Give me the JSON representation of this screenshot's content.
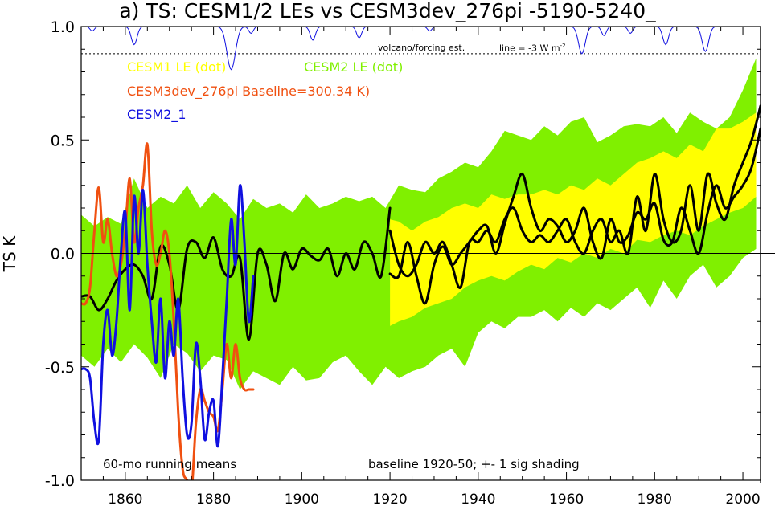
{
  "chart_data": {
    "type": "line",
    "title": "a) TS: CESM1/2 LEs vs CESM3dev_276pi -5190-5240_",
    "ylabel": "TS K",
    "xlabel": "",
    "xlim": [
      1850,
      2004
    ],
    "ylim": [
      -1.0,
      1.0
    ],
    "x_ticks": [
      1860,
      1880,
      1900,
      1920,
      1940,
      1960,
      1980,
      2000
    ],
    "x_tick_labels": [
      "1860",
      "1880",
      "1900",
      "1920",
      "1940",
      "1960",
      "1980",
      "2000"
    ],
    "y_ticks": [
      -1.0,
      -0.5,
      0.0,
      0.5,
      1.0
    ],
    "y_tick_labels": [
      "-1.0",
      "-0.5",
      "0.0",
      "0.5",
      "1.0"
    ],
    "grid": false,
    "legend": [
      {
        "label": "CESM1 LE (dot)",
        "color": "#ffff00"
      },
      {
        "label": "CESM2 LE (dot)",
        "color": "#80f000"
      },
      {
        "label": "CESM3dev_276pi Baseline=300.34 K)",
        "color": "#f05010"
      },
      {
        "label": "CESM2_1",
        "color": "#1010e0"
      }
    ],
    "annotations": {
      "volcano_label": "volcano/forcing est.",
      "forcing_scale": "line = -3 W m",
      "forcing_scale_sup": "-2",
      "running_means": "60-mo running means",
      "baseline_note": "baseline 1920-50; +- 1 sig shading"
    },
    "forcing_reference_y": 0.88,
    "volcano_dips": [
      {
        "year": 1852.5,
        "depth": 0.02
      },
      {
        "year": 1862.0,
        "depth": 0.08
      },
      {
        "year": 1884.0,
        "depth": 0.19
      },
      {
        "year": 1888.5,
        "depth": 0.03
      },
      {
        "year": 1902.5,
        "depth": 0.06
      },
      {
        "year": 1913.0,
        "depth": 0.05
      },
      {
        "year": 1929.0,
        "depth": 0.02
      },
      {
        "year": 1963.5,
        "depth": 0.12
      },
      {
        "year": 1968.5,
        "depth": 0.04
      },
      {
        "year": 1974.5,
        "depth": 0.03
      },
      {
        "year": 1982.5,
        "depth": 0.08
      },
      {
        "year": 1991.5,
        "depth": 0.11
      }
    ],
    "cesm2_envelope": {
      "x": [
        1850,
        1853,
        1856,
        1859,
        1862,
        1865,
        1868,
        1871,
        1874,
        1877,
        1880,
        1883,
        1886,
        1889,
        1892,
        1895,
        1898,
        1901,
        1904,
        1907,
        1910,
        1913,
        1916,
        1919,
        1922,
        1925,
        1928,
        1931,
        1934,
        1937,
        1940,
        1943,
        1946,
        1949,
        1952,
        1955,
        1958,
        1961,
        1964,
        1967,
        1970,
        1973,
        1976,
        1979,
        1982,
        1985,
        1988,
        1991,
        1994,
        1997,
        2000,
        2003
      ],
      "upper": [
        0.17,
        0.12,
        0.16,
        0.13,
        0.33,
        0.2,
        0.25,
        0.22,
        0.3,
        0.2,
        0.27,
        0.22,
        0.15,
        0.24,
        0.2,
        0.22,
        0.18,
        0.26,
        0.2,
        0.22,
        0.25,
        0.23,
        0.25,
        0.2,
        0.3,
        0.28,
        0.27,
        0.33,
        0.36,
        0.4,
        0.38,
        0.45,
        0.54,
        0.52,
        0.5,
        0.56,
        0.52,
        0.58,
        0.6,
        0.49,
        0.52,
        0.56,
        0.57,
        0.56,
        0.6,
        0.53,
        0.62,
        0.58,
        0.55,
        0.6,
        0.72,
        0.86
      ],
      "lower": [
        -0.45,
        -0.5,
        -0.42,
        -0.48,
        -0.4,
        -0.46,
        -0.55,
        -0.4,
        -0.44,
        -0.52,
        -0.45,
        -0.47,
        -0.6,
        -0.52,
        -0.55,
        -0.58,
        -0.5,
        -0.56,
        -0.55,
        -0.48,
        -0.45,
        -0.52,
        -0.58,
        -0.5,
        -0.55,
        -0.52,
        -0.5,
        -0.45,
        -0.42,
        -0.5,
        -0.35,
        -0.3,
        -0.33,
        -0.28,
        -0.28,
        -0.25,
        -0.3,
        -0.24,
        -0.28,
        -0.22,
        -0.25,
        -0.2,
        -0.15,
        -0.24,
        -0.12,
        -0.2,
        -0.1,
        -0.05,
        -0.15,
        -0.1,
        -0.02,
        0.02
      ]
    },
    "cesm1_envelope": {
      "x": [
        1920,
        1922,
        1925,
        1928,
        1931,
        1934,
        1937,
        1940,
        1943,
        1946,
        1949,
        1952,
        1955,
        1958,
        1961,
        1964,
        1967,
        1970,
        1973,
        1976,
        1979,
        1982,
        1985,
        1988,
        1991,
        1994,
        1997,
        2000,
        2003
      ],
      "upper": [
        0.15,
        0.14,
        0.1,
        0.14,
        0.16,
        0.2,
        0.22,
        0.2,
        0.26,
        0.24,
        0.26,
        0.26,
        0.28,
        0.26,
        0.3,
        0.28,
        0.33,
        0.3,
        0.35,
        0.4,
        0.42,
        0.45,
        0.42,
        0.48,
        0.45,
        0.55,
        0.55,
        0.58,
        0.62
      ],
      "lower": [
        -0.32,
        -0.3,
        -0.28,
        -0.24,
        -0.22,
        -0.2,
        -0.15,
        -0.12,
        -0.1,
        -0.12,
        -0.08,
        -0.05,
        -0.07,
        -0.02,
        -0.04,
        0.0,
        -0.02,
        0.02,
        0.0,
        0.06,
        0.05,
        0.08,
        0.1,
        0.08,
        0.12,
        0.15,
        0.18,
        0.2,
        0.25
      ]
    },
    "series": [
      {
        "color": "#000000",
        "x": [
          1850,
          1852,
          1854,
          1856,
          1858,
          1860,
          1862,
          1864,
          1866,
          1868,
          1870,
          1872,
          1874,
          1876,
          1878,
          1880,
          1882,
          1884,
          1886,
          1888,
          1890,
          1892,
          1894,
          1896,
          1898,
          1900,
          1902,
          1904,
          1906,
          1908,
          1910,
          1912,
          1914,
          1916,
          1918,
          1920
        ],
        "values": [
          -0.19,
          -0.19,
          -0.25,
          -0.2,
          -0.12,
          -0.07,
          -0.05,
          -0.1,
          -0.2,
          0.03,
          -0.05,
          -0.25,
          0.02,
          0.05,
          -0.02,
          0.07,
          -0.07,
          -0.1,
          -0.02,
          -0.38,
          0.0,
          -0.05,
          -0.21,
          0.0,
          -0.07,
          0.02,
          -0.01,
          -0.03,
          0.02,
          -0.1,
          0.0,
          -0.07,
          0.05,
          0.0,
          -0.1,
          0.2
        ]
      },
      {
        "color": "#000000",
        "x": [
          1920,
          1922,
          1924,
          1926,
          1928,
          1930,
          1932,
          1934,
          1936,
          1938,
          1940,
          1942,
          1944,
          1946,
          1948,
          1950,
          1952,
          1954,
          1956,
          1958,
          1960,
          1962,
          1964,
          1966,
          1968,
          1970,
          1972,
          1974,
          1976,
          1978,
          1980,
          1982,
          1984,
          1986,
          1988,
          1990,
          1992,
          1994,
          1996,
          1998,
          2000,
          2002,
          2004
        ],
        "values": [
          -0.09,
          -0.1,
          0.05,
          -0.1,
          -0.22,
          -0.05,
          0.03,
          -0.05,
          0.0,
          0.05,
          0.1,
          0.12,
          0.0,
          0.13,
          0.25,
          0.35,
          0.2,
          0.1,
          0.15,
          0.12,
          0.05,
          0.1,
          0.2,
          0.05,
          -0.02,
          0.15,
          0.05,
          0.08,
          0.18,
          0.15,
          0.22,
          0.06,
          0.05,
          0.2,
          0.1,
          0.0,
          0.18,
          0.3,
          0.2,
          0.25,
          0.3,
          0.38,
          0.55
        ]
      },
      {
        "color": "#000000",
        "x": [
          1920,
          1922,
          1924,
          1926,
          1928,
          1930,
          1932,
          1934,
          1936,
          1938,
          1940,
          1942,
          1944,
          1946,
          1948,
          1950,
          1952,
          1954,
          1956,
          1958,
          1960,
          1962,
          1964,
          1966,
          1968,
          1970,
          1972,
          1974,
          1976,
          1978,
          1980,
          1982,
          1984,
          1986,
          1988,
          1990,
          1992,
          1994,
          1996,
          1998,
          2000,
          2002,
          2004
        ],
        "values": [
          0.1,
          -0.05,
          -0.1,
          -0.05,
          0.05,
          0.0,
          0.05,
          -0.05,
          -0.15,
          0.05,
          0.05,
          0.1,
          0.05,
          0.15,
          0.2,
          0.1,
          0.05,
          0.08,
          0.05,
          0.1,
          0.15,
          0.05,
          0.0,
          0.1,
          0.15,
          0.05,
          0.1,
          0.0,
          0.25,
          0.1,
          0.35,
          0.15,
          0.05,
          0.1,
          0.3,
          0.1,
          0.35,
          0.22,
          0.15,
          0.3,
          0.4,
          0.5,
          0.65
        ]
      },
      {
        "color": "#f05010",
        "x": [
          1850,
          1851,
          1852,
          1853,
          1854,
          1855,
          1856,
          1857,
          1858,
          1859,
          1860,
          1861,
          1862,
          1863,
          1864,
          1865,
          1866,
          1867,
          1868,
          1869,
          1870,
          1871,
          1872,
          1873,
          1874,
          1875,
          1876,
          1877,
          1878,
          1879,
          1880,
          1881,
          1882,
          1883,
          1884,
          1885,
          1886,
          1887,
          1888,
          1889
        ],
        "values": [
          -0.22,
          -0.22,
          -0.15,
          0.1,
          0.29,
          0.05,
          0.15,
          0.0,
          -0.1,
          -0.05,
          0.1,
          0.33,
          0.05,
          0.2,
          0.3,
          0.48,
          0.1,
          -0.05,
          0.0,
          0.1,
          0.0,
          -0.3,
          -0.7,
          -0.95,
          -1.0,
          -1.05,
          -0.75,
          -0.6,
          -0.65,
          -0.7,
          -0.72,
          -0.78,
          -0.6,
          -0.4,
          -0.55,
          -0.4,
          -0.55,
          -0.6,
          -0.6,
          -0.6
        ]
      },
      {
        "color": "#1010e0",
        "x": [
          1850,
          1851,
          1852,
          1853,
          1854,
          1855,
          1856,
          1857,
          1858,
          1859,
          1860,
          1861,
          1862,
          1863,
          1864,
          1865,
          1866,
          1867,
          1868,
          1869,
          1870,
          1871,
          1872,
          1873,
          1874,
          1875,
          1876,
          1877,
          1878,
          1879,
          1880,
          1881,
          1882,
          1883,
          1884,
          1885,
          1886,
          1887,
          1888,
          1889
        ],
        "values": [
          -0.51,
          -0.51,
          -0.55,
          -0.75,
          -0.82,
          -0.4,
          -0.25,
          -0.45,
          -0.3,
          0.0,
          0.18,
          -0.25,
          0.25,
          0.0,
          0.28,
          -0.05,
          -0.3,
          -0.48,
          -0.2,
          -0.55,
          -0.3,
          -0.45,
          -0.2,
          -0.55,
          -0.8,
          -0.75,
          -0.4,
          -0.55,
          -0.82,
          -0.7,
          -0.65,
          -0.85,
          -0.55,
          -0.2,
          0.15,
          -0.05,
          0.3,
          0.05,
          -0.3,
          -0.1
        ]
      }
    ]
  }
}
